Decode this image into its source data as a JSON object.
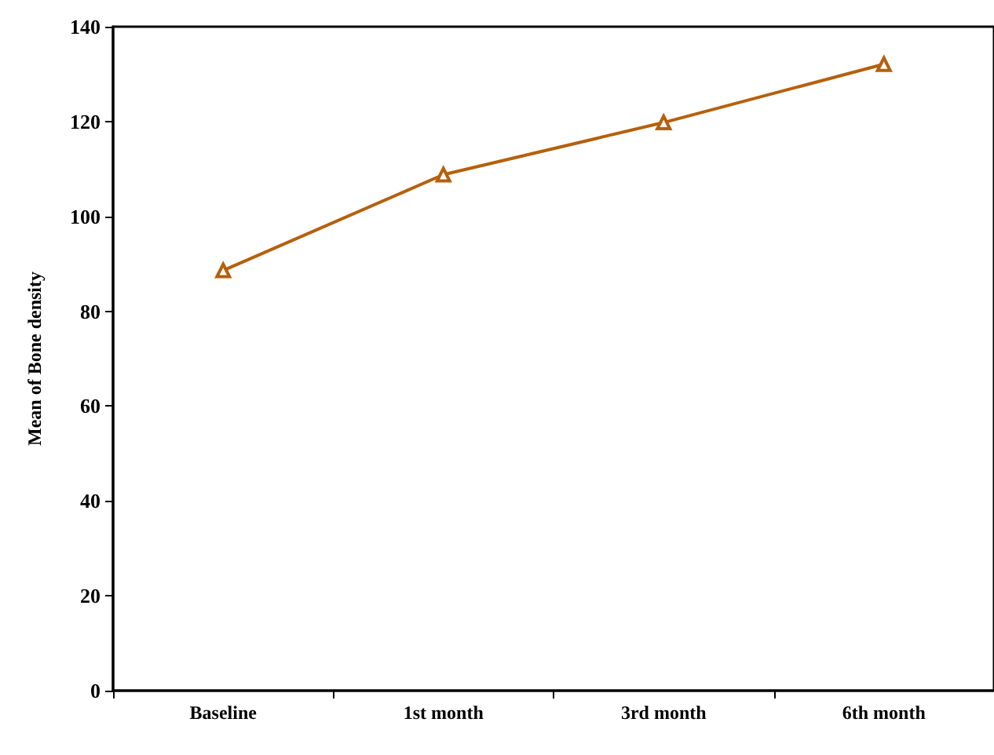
{
  "chart_data": {
    "type": "line",
    "ylabel": "Mean of Bone density",
    "categories": [
      "Baseline",
      "1st month",
      "3rd month",
      "6th month"
    ],
    "series": [
      {
        "color": "#b5600c",
        "values": [
          88.6,
          108.8,
          119.8,
          132.1
        ]
      }
    ],
    "ylim": [
      0,
      140
    ],
    "yticks": [
      0,
      20,
      40,
      60,
      80,
      100,
      120,
      140
    ],
    "grid": false,
    "marker": "triangle",
    "line_style": "solid"
  }
}
